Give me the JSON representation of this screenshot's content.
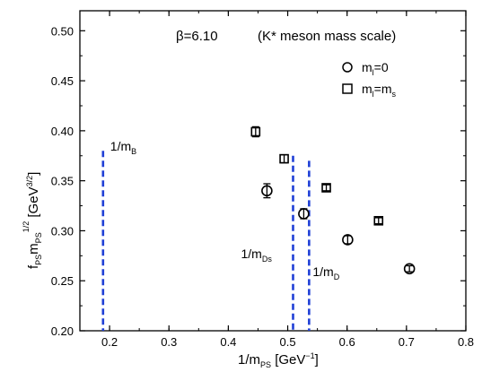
{
  "chart_data": {
    "type": "scatter",
    "xlim": [
      0.15,
      0.8
    ],
    "ylim": [
      0.2,
      0.52
    ],
    "x_ticks": [
      "0.2",
      "0.3",
      "0.4",
      "0.5",
      "0.6",
      "0.7",
      "0.8"
    ],
    "y_ticks": [
      "0.20",
      "0.25",
      "0.30",
      "0.35",
      "0.40",
      "0.45",
      "0.50"
    ],
    "grid": false,
    "legend_position": "top-right",
    "annotations": {
      "beta": "β=6.10",
      "scale": "(K* meson mass scale)"
    },
    "series": [
      {
        "name": "m_l=0",
        "marker": "circle",
        "x": [
          0.465,
          0.527,
          0.601,
          0.705
        ],
        "y": [
          0.34,
          0.317,
          0.291,
          0.262
        ],
        "yerr": [
          0.007,
          0.005,
          0.004,
          0.003
        ]
      },
      {
        "name": "m_l=m_s",
        "marker": "square",
        "x": [
          0.446,
          0.494,
          0.565,
          0.653
        ],
        "y": [
          0.399,
          0.372,
          0.343,
          0.31
        ],
        "yerr": [
          0.005,
          0.004,
          0.003,
          0.003
        ]
      }
    ],
    "vertical_lines": [
      {
        "x": 0.189,
        "y_top": 0.38,
        "label": "1/m",
        "sub": "B",
        "color": "#1f3fd6"
      },
      {
        "x": 0.509,
        "y_top": 0.375,
        "label": "1/m",
        "sub": "Ds",
        "color": "#1f3fd6"
      },
      {
        "x": 0.536,
        "y_top": 0.37,
        "label": "1/m",
        "sub": "D",
        "color": "#1f3fd6"
      }
    ]
  }
}
